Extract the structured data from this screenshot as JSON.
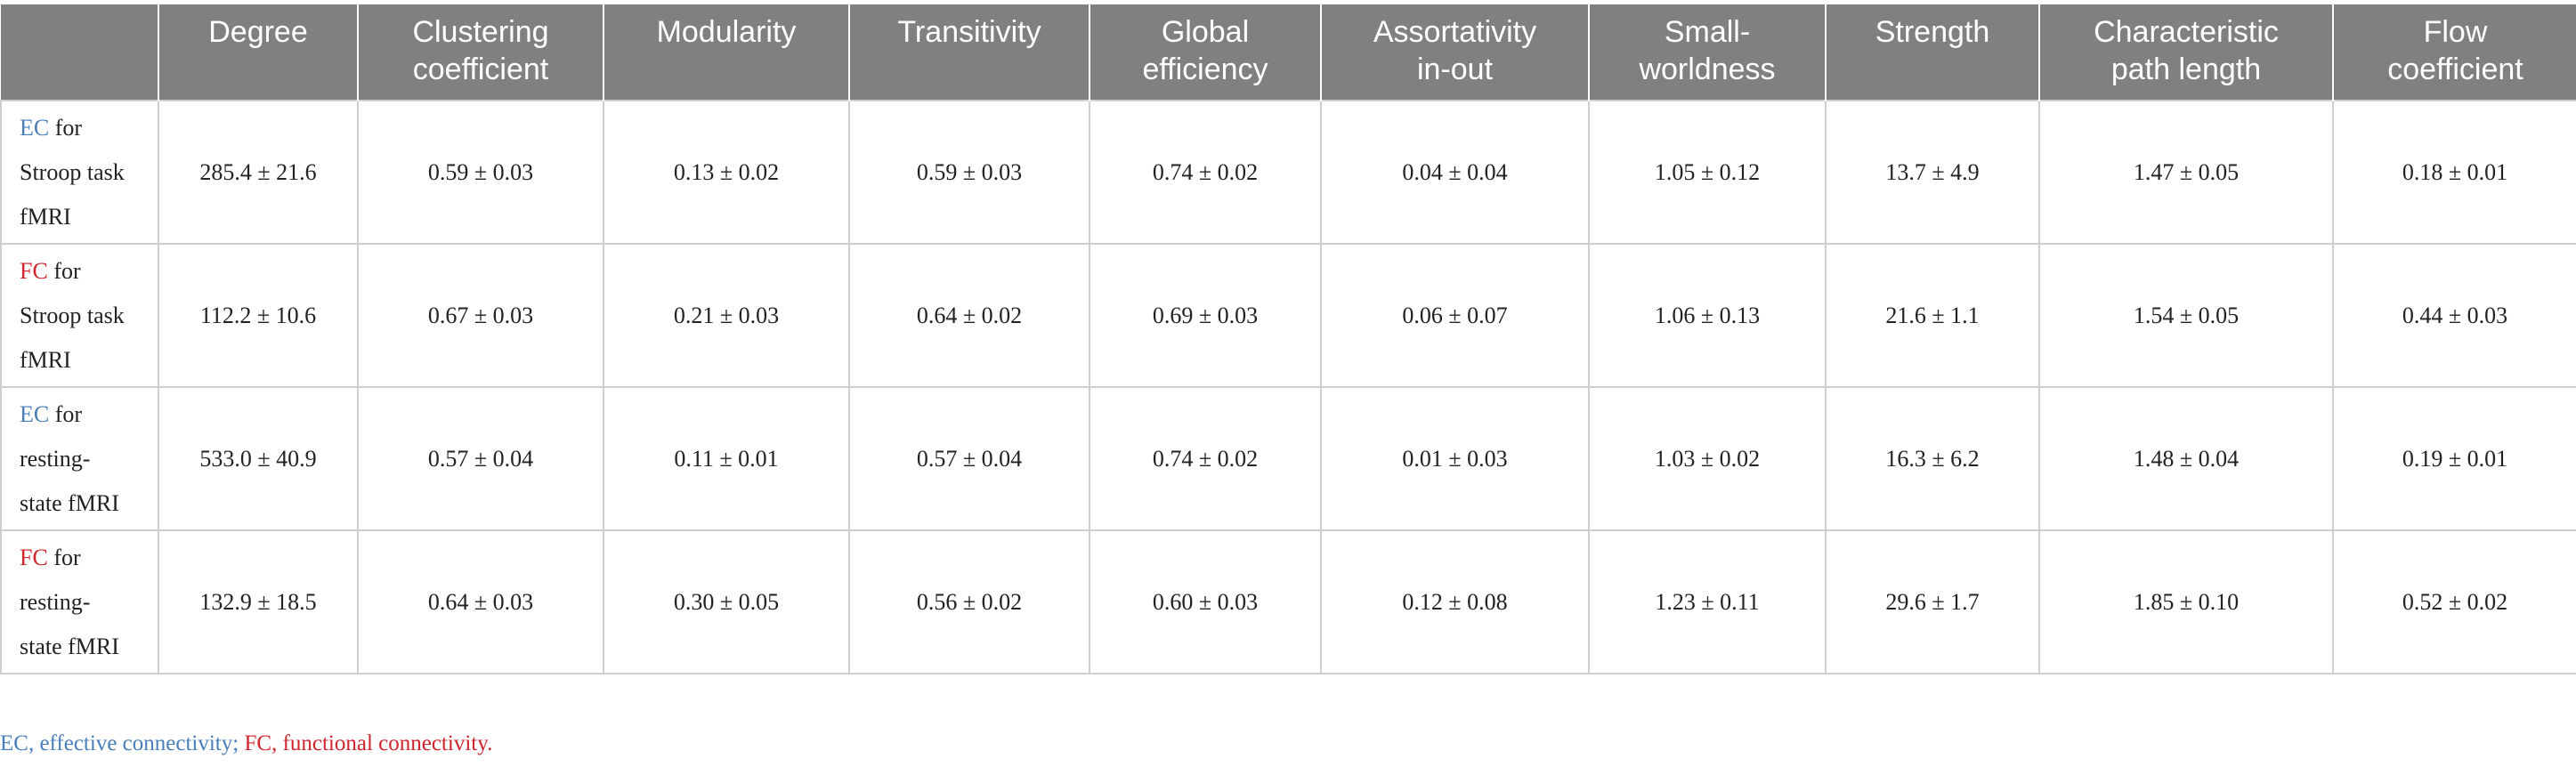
{
  "table": {
    "headers": [
      "",
      "Degree",
      "Clustering\ncoefficient",
      "Modularity",
      "Transitivity",
      "Global\nefficiency",
      "Assortativity\nin-out",
      "Small-\nworldness",
      "Strength",
      "Characteristic\npath length",
      "Flow\ncoefficient"
    ],
    "rows": [
      {
        "abbr": "EC",
        "label_lines": [
          "for",
          "Stroop task",
          "fMRI"
        ],
        "values": [
          "285.4 ± 21.6",
          "0.59 ± 0.03",
          "0.13 ± 0.02",
          "0.59 ± 0.03",
          "0.74 ± 0.02",
          "0.04 ± 0.04",
          "1.05 ± 0.12",
          "13.7 ± 4.9",
          "1.47 ± 0.05",
          "0.18 ± 0.01"
        ]
      },
      {
        "abbr": "FC",
        "label_lines": [
          "for",
          "Stroop task",
          "fMRI"
        ],
        "values": [
          "112.2 ± 10.6",
          "0.67 ± 0.03",
          "0.21 ± 0.03",
          "0.64 ± 0.02",
          "0.69 ± 0.03",
          "0.06 ± 0.07",
          "1.06 ± 0.13",
          "21.6 ± 1.1",
          "1.54 ± 0.05",
          "0.44 ± 0.03"
        ]
      },
      {
        "abbr": "EC",
        "label_lines": [
          "for",
          "resting-",
          "state fMRI"
        ],
        "values": [
          "533.0 ± 40.9",
          "0.57 ± 0.04",
          "0.11 ± 0.01",
          "0.57 ± 0.04",
          "0.74 ± 0.02",
          "0.01 ± 0.03",
          "1.03 ± 0.02",
          "16.3 ± 6.2",
          "1.48 ± 0.04",
          "0.19 ± 0.01"
        ]
      },
      {
        "abbr": "FC",
        "label_lines": [
          "for",
          "resting-",
          "state fMRI"
        ],
        "values": [
          "132.9 ± 18.5",
          "0.64 ± 0.03",
          "0.30 ± 0.05",
          "0.56 ± 0.02",
          "0.60 ± 0.03",
          "0.12 ± 0.08",
          "1.23 ± 0.11",
          "29.6 ± 1.7",
          "1.85 ± 0.10",
          "0.52 ± 0.02"
        ]
      }
    ]
  },
  "footnote": {
    "ec_text": "EC, effective connectivity;",
    "fc_text": "FC, functional connectivity."
  },
  "colors": {
    "header_bg": "#808080",
    "ec": "#4a7ebb",
    "fc": "#d0242c",
    "grid": "#cfcfcf"
  }
}
